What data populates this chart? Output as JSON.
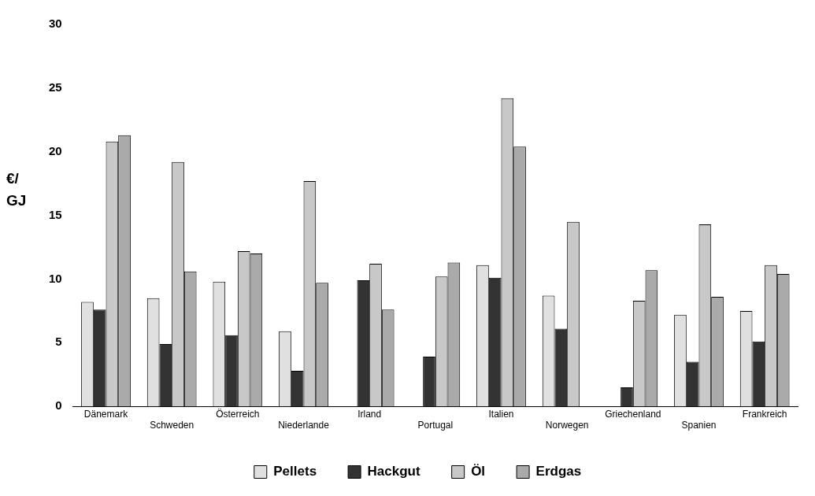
{
  "chart_data": {
    "type": "bar",
    "ylabel": "€/ GJ",
    "categories": [
      "Dänemark",
      "Schweden",
      "Österreich",
      "Niederlande",
      "Irland",
      "Portugal",
      "Italien",
      "Norwegen",
      "Griechenland",
      "Spanien",
      "Frankreich"
    ],
    "series": [
      {
        "name": "Pellets",
        "color": "#e0e0e0",
        "values": [
          8.2,
          8.5,
          9.8,
          5.9,
          null,
          null,
          11.1,
          8.7,
          null,
          7.2,
          7.5
        ]
      },
      {
        "name": "Hackgut",
        "color": "#333333",
        "values": [
          7.6,
          4.9,
          5.6,
          2.8,
          9.9,
          3.9,
          10.1,
          6.1,
          1.5,
          3.5,
          5.1
        ]
      },
      {
        "name": "Öl",
        "color": "#c8c8c8",
        "values": [
          20.8,
          19.2,
          12.2,
          17.7,
          11.2,
          10.2,
          24.2,
          14.5,
          8.3,
          14.3,
          11.1
        ]
      },
      {
        "name": "Erdgas",
        "color": "#aaaaaa",
        "values": [
          21.3,
          10.6,
          12.0,
          9.7,
          7.6,
          11.3,
          20.4,
          null,
          10.7,
          8.6,
          10.4
        ]
      }
    ],
    "ylim": [
      0,
      30
    ],
    "yticks": [
      0,
      5,
      10,
      15,
      20,
      25,
      30
    ],
    "grid": false,
    "legend": "bottom"
  }
}
